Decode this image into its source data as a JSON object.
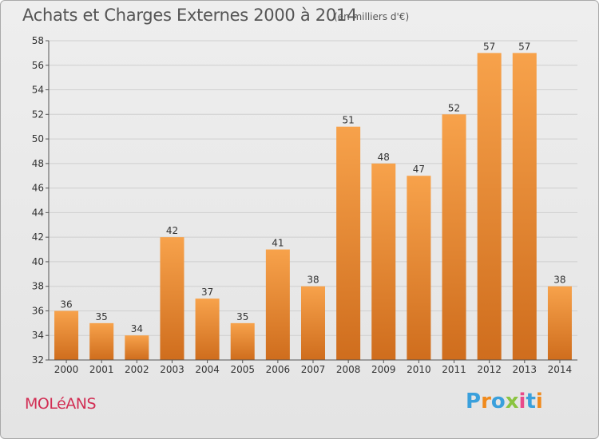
{
  "chart_data": {
    "type": "bar",
    "title": "Achats et Charges Externes 2000 à 2014",
    "subtitle": "(en milliers d'€)",
    "categories": [
      "2000",
      "2001",
      "2002",
      "2003",
      "2004",
      "2005",
      "2006",
      "2007",
      "2008",
      "2009",
      "2010",
      "2011",
      "2012",
      "2013",
      "2014"
    ],
    "values": [
      36,
      35,
      34,
      42,
      37,
      35,
      41,
      38,
      51,
      48,
      47,
      52,
      57,
      57,
      38
    ],
    "data_labels": [
      "36",
      "35",
      "34",
      "42",
      "37",
      "35",
      "41",
      "38",
      "51",
      "48",
      "47",
      "52",
      "57",
      "57",
      "38"
    ],
    "ylim": [
      32,
      58
    ],
    "yticks": [
      32,
      34,
      36,
      38,
      40,
      42,
      44,
      46,
      48,
      50,
      52,
      54,
      56,
      58
    ],
    "ytick_labels": [
      "32",
      "34",
      "36",
      "38",
      "40",
      "42",
      "44",
      "46",
      "48",
      "50",
      "52",
      "54",
      "56",
      "58"
    ],
    "grid": true,
    "bar_color_top": "#f7a24b",
    "bar_color_bottom": "#cf6d1d"
  },
  "town_name": "MOLéANS",
  "brand": {
    "letters": [
      "P",
      "r",
      "o",
      "x",
      "i",
      "t",
      "i"
    ],
    "colors": [
      "#3aa0dc",
      "#f08a1c",
      "#3aa0dc",
      "#8bc441",
      "#e84a8a",
      "#3aa0dc",
      "#f08a1c"
    ]
  }
}
